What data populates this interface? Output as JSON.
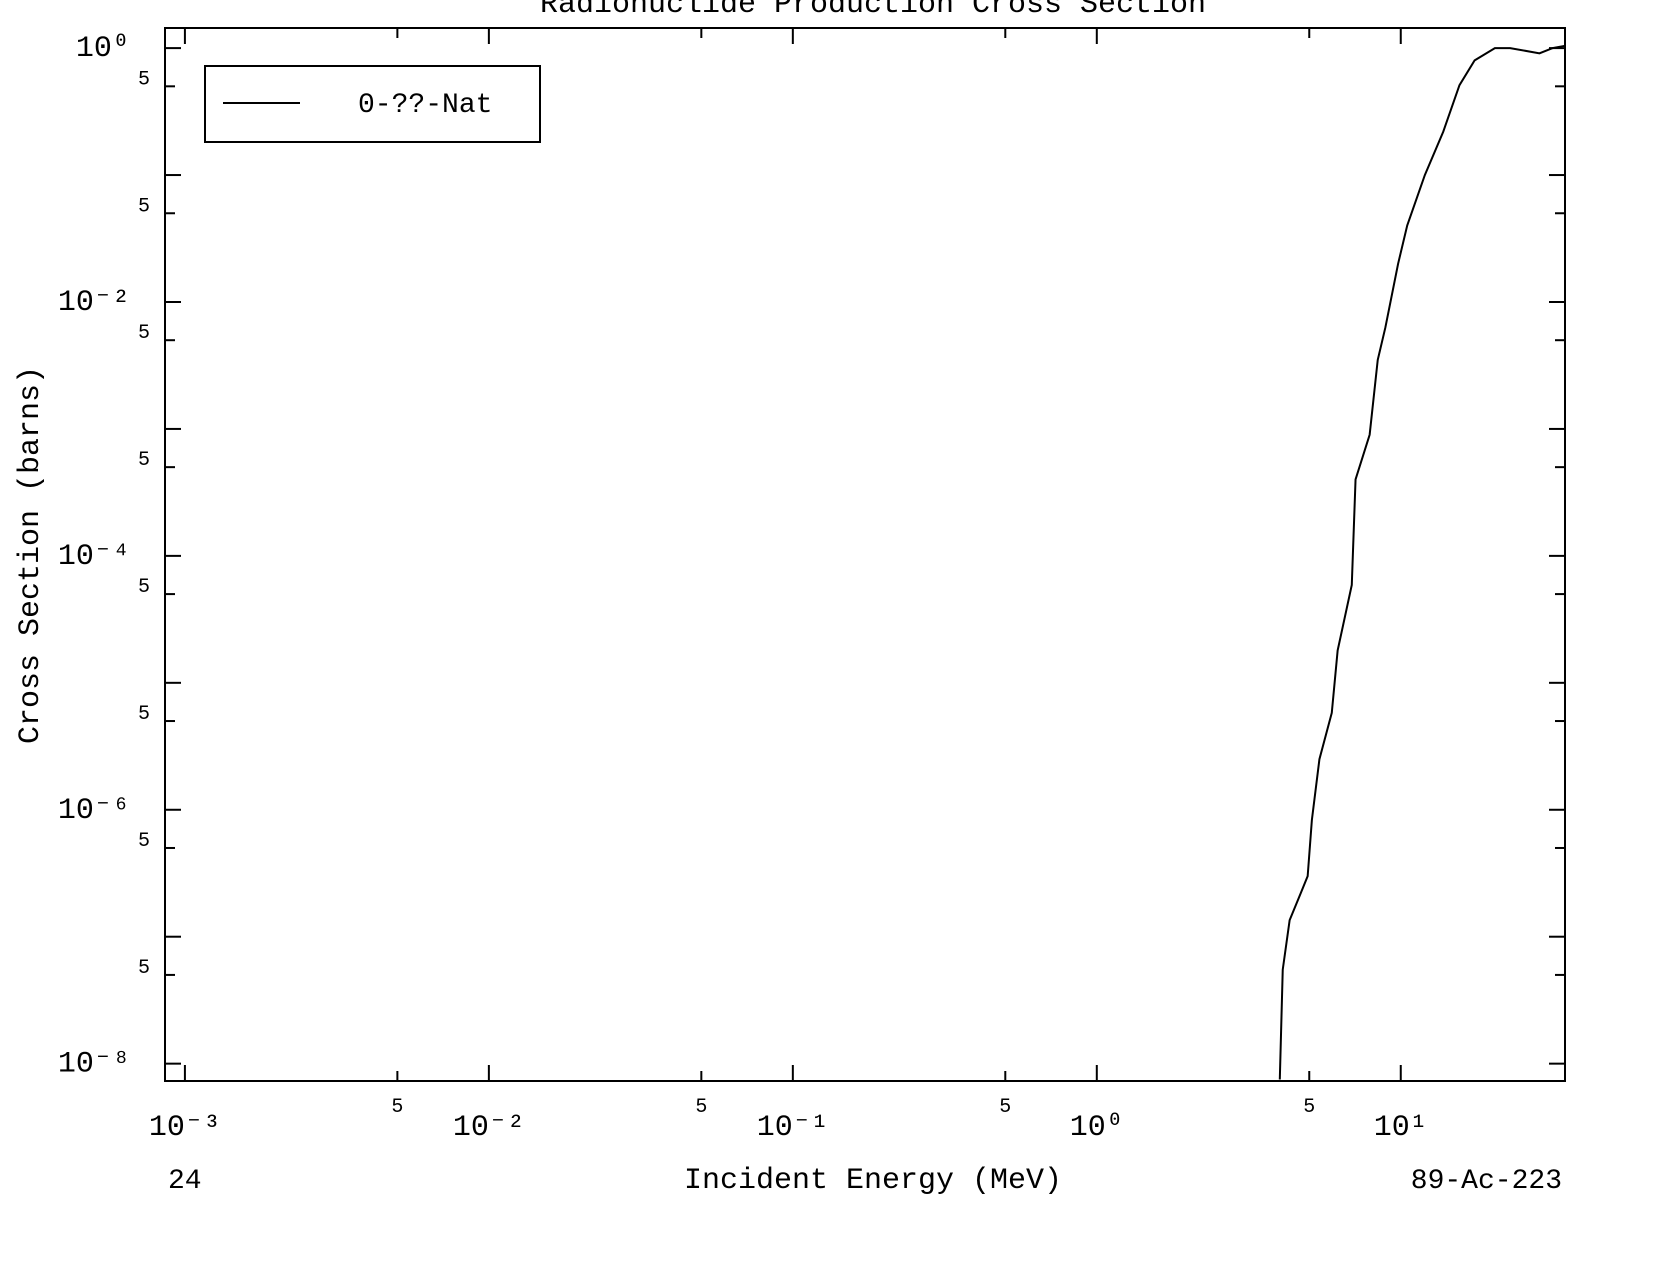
{
  "chart_data": {
    "type": "line",
    "title": "Radionuclide Production Cross Section",
    "xlabel": "Incident Energy (MeV)",
    "ylabel": "Cross Section (barns)",
    "footer_left": "24",
    "footer_right": "89-Ac-223",
    "xscale": "log",
    "yscale": "log",
    "xlim": [
      0.00086,
      34.7
    ],
    "ylim": [
      7.3e-09,
      1.44
    ],
    "xticks": [
      {
        "value": 0.001,
        "label": "10⁻³"
      },
      {
        "value": 0.005,
        "label": "5"
      },
      {
        "value": 0.01,
        "label": "10⁻²"
      },
      {
        "value": 0.05,
        "label": "5"
      },
      {
        "value": 0.1,
        "label": "10⁻¹"
      },
      {
        "value": 0.5,
        "label": "5"
      },
      {
        "value": 1,
        "label": "10⁰"
      },
      {
        "value": 5,
        "label": "5"
      },
      {
        "value": 10,
        "label": "10¹"
      }
    ],
    "yticks": [
      {
        "value": 1,
        "label": "10⁰"
      },
      {
        "value": 0.5,
        "label": "5"
      },
      {
        "value": 0.1,
        "label": null
      },
      {
        "value": 0.05,
        "label": "5"
      },
      {
        "value": 0.01,
        "label": "10⁻²"
      },
      {
        "value": 0.005,
        "label": "5"
      },
      {
        "value": 0.001,
        "label": null
      },
      {
        "value": 0.0005,
        "label": "5"
      },
      {
        "value": 0.0001,
        "label": "10⁻⁴"
      },
      {
        "value": 5e-05,
        "label": "5"
      },
      {
        "value": 1e-05,
        "label": null
      },
      {
        "value": 5e-06,
        "label": "5"
      },
      {
        "value": 1e-06,
        "label": "10⁻⁶"
      },
      {
        "value": 5e-07,
        "label": "5"
      },
      {
        "value": 1e-07,
        "label": null
      },
      {
        "value": 5e-08,
        "label": "5"
      },
      {
        "value": 1e-08,
        "label": "10⁻⁸"
      }
    ],
    "legend": "upper left",
    "series": [
      {
        "name": "0-??-Nat",
        "color": "#000000",
        "x": [
          4.0,
          4.09,
          4.31,
          4.65,
          4.94,
          5.1,
          5.4,
          5.93,
          6.2,
          6.9,
          7.1,
          7.9,
          8.4,
          8.9,
          9.8,
          10.5,
          12.0,
          13.8,
          15.6,
          17.5,
          20.4,
          22.9,
          28.6,
          31.6,
          34.5
        ],
        "values": [
          7.5e-09,
          5.5e-08,
          1.35e-07,
          2.1e-07,
          3e-07,
          8.3e-07,
          2.5e-06,
          5.8e-06,
          1.8e-05,
          5.9e-05,
          0.0004,
          0.0009,
          0.0035,
          0.0063,
          0.02,
          0.04,
          0.1,
          0.22,
          0.51,
          0.8,
          1.0,
          1.0,
          0.91,
          1.0,
          1.04
        ]
      }
    ]
  }
}
